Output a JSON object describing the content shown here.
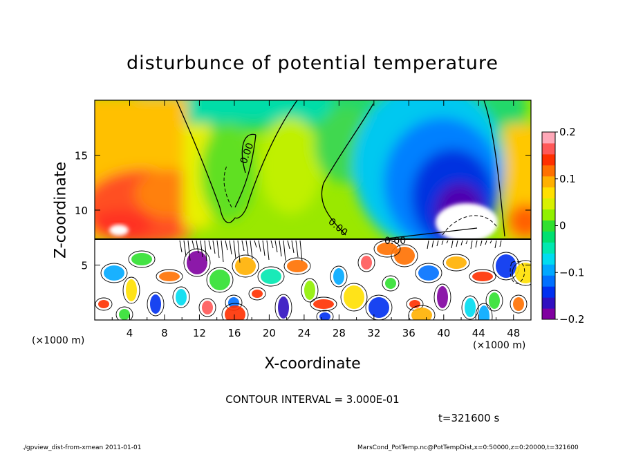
{
  "chart_data": {
    "type": "heatmap",
    "title": "disturbunce of potential temperature",
    "xlabel": "X-coordinate",
    "ylabel": "Z-coordinate",
    "x_unit_label": "(×1000 m)",
    "x_unit_label_right": "(×1000 m)",
    "xlim": [
      0,
      50
    ],
    "ylim": [
      0,
      20
    ],
    "x_ticks": [
      4,
      8,
      12,
      16,
      20,
      24,
      28,
      32,
      36,
      40,
      44,
      48
    ],
    "y_ticks": [
      5,
      10,
      15
    ],
    "colorbar": {
      "range": [
        -0.2,
        0.2
      ],
      "tick_values": [
        -0.2,
        -0.1,
        0,
        0.1,
        0.2
      ],
      "tick_labels": [
        "−0.2",
        "−0.1",
        "0",
        "0.1",
        "0.2"
      ],
      "colors": [
        "#8000a0",
        "#3010c0",
        "#0030f0",
        "#0070ff",
        "#00a8ff",
        "#00dcf0",
        "#00e8b0",
        "#00e070",
        "#30e030",
        "#90f000",
        "#d8f000",
        "#ffe000",
        "#ffb000",
        "#ff7000",
        "#ff3000",
        "#ff5858",
        "#ffa8b8"
      ]
    },
    "contour_labels": [
      "0.00",
      "0.00",
      "0.00"
    ],
    "contour_interval_text": "CONTOUR INTERVAL = 3.000E-01",
    "time_text": "t=321600 s",
    "footer_left": "./gpview_dist-from-xmean   2011-01-01",
    "footer_right": "MarsCond_PotTemp.nc@PotTempDist,x=0:50000,z=0:20000,t=321600",
    "regions": [
      {
        "name": "left-warm-upper",
        "x": [
          0,
          11
        ],
        "z": [
          7.5,
          20
        ],
        "value": 0.12
      },
      {
        "name": "central-neutral",
        "x": [
          11,
          30
        ],
        "z": [
          7.5,
          20
        ],
        "value": 0.02
      },
      {
        "name": "right-cold-plume",
        "x": [
          30,
          46
        ],
        "z": [
          7.5,
          20
        ],
        "value": -0.15
      },
      {
        "name": "right-warm-edge",
        "x": [
          46,
          50
        ],
        "z": [
          7.5,
          20
        ],
        "value": 0.07
      },
      {
        "name": "turbulent-lower-layer",
        "x": [
          0,
          50
        ],
        "z": [
          0,
          7.5
        ],
        "value": 0
      }
    ]
  }
}
